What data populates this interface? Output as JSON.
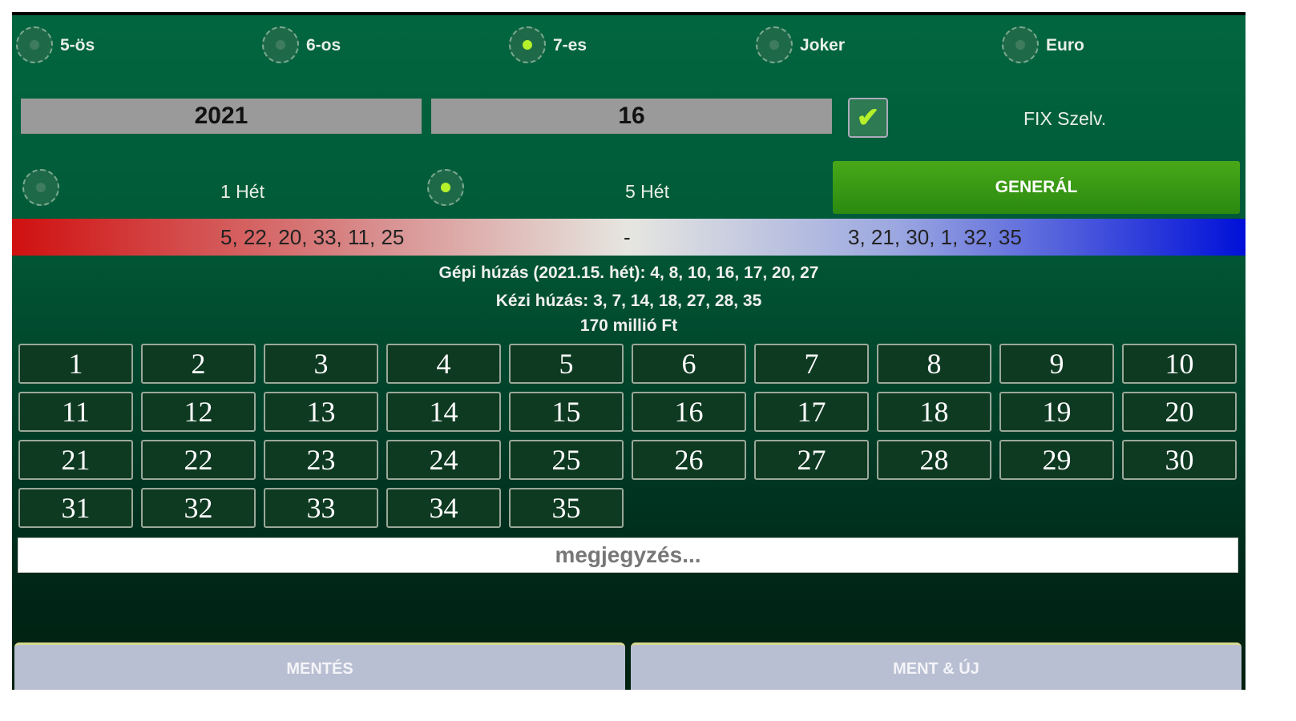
{
  "game_types": [
    {
      "label": "5-ös",
      "selected": false
    },
    {
      "label": "6-os",
      "selected": false
    },
    {
      "label": "7-es",
      "selected": true
    },
    {
      "label": "Joker",
      "selected": false
    },
    {
      "label": "Euro",
      "selected": false
    }
  ],
  "year": "2021",
  "week": "16",
  "fix_checked": true,
  "fix_label": "FIX Szelv.",
  "weeks": [
    {
      "label": "1 Hét",
      "selected": false
    },
    {
      "label": "5 Hét",
      "selected": true
    }
  ],
  "generate_label": "GENERÁL",
  "bar": {
    "left": "5, 22, 20, 33, 11, 25",
    "middle": "-",
    "right": "3, 21, 30, 1, 32, 35"
  },
  "info": {
    "machine": "Gépi húzás (2021.15. hét): 4, 8, 10, 16, 17, 20, 27",
    "manual": "Kézi húzás: 3, 7, 14, 18, 27, 28, 35",
    "jackpot": "170 millió Ft"
  },
  "numbers": [
    "1",
    "2",
    "3",
    "4",
    "5",
    "6",
    "7",
    "8",
    "9",
    "10",
    "11",
    "12",
    "13",
    "14",
    "15",
    "16",
    "17",
    "18",
    "19",
    "20",
    "21",
    "22",
    "23",
    "24",
    "25",
    "26",
    "27",
    "28",
    "29",
    "30",
    "31",
    "32",
    "33",
    "34",
    "35"
  ],
  "note_placeholder": "megjegyzés...",
  "save_label": "MENTÉS",
  "save_new_label": "MENT & ÚJ",
  "colors": {
    "accent": "#b5f02a",
    "generate": "#3a9a14"
  }
}
